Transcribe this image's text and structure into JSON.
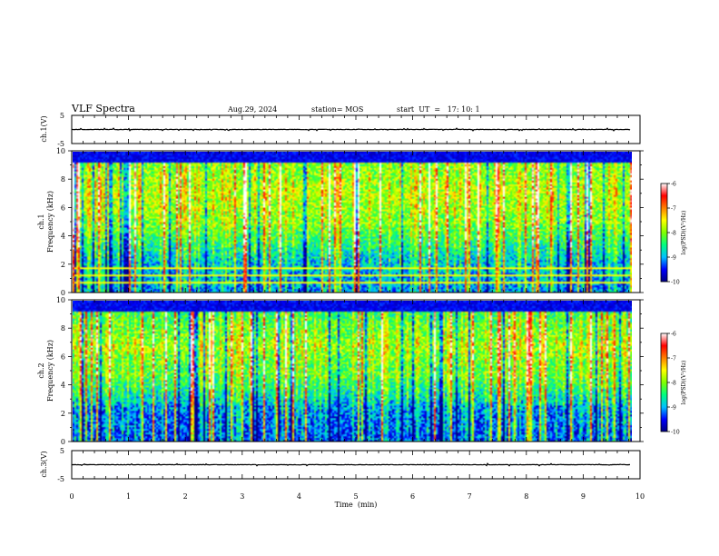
{
  "header": {
    "title": "VLF Spectra",
    "date": "Aug.29, 2024",
    "station": "station= MOS",
    "start": "start  UT  =   17: 10: 1"
  },
  "chart_data": [
    {
      "id": "ch1-waveform",
      "type": "line",
      "ylabel": "ch.1(V)",
      "ytick_labels": [
        "5",
        "-5"
      ],
      "ylim": [
        -5,
        5
      ],
      "xlim": [
        0,
        10
      ],
      "baseline": 0,
      "extent_x": 9.84
    },
    {
      "id": "ch1-spectrogram",
      "type": "heatmap",
      "ylabel": "ch.1\nFrequency (kHz)",
      "ylim": [
        0,
        10
      ],
      "yticks": [
        "0",
        "2",
        "4",
        "6",
        "8",
        "10"
      ],
      "xlim": [
        0,
        10
      ],
      "extent_x": 9.84,
      "colorbar": {
        "label": "log(PSD)(V²/Hz)",
        "range": [
          -10,
          -6
        ],
        "tick_labels": [
          "-6",
          "-7",
          "-8",
          "-9",
          "-10"
        ],
        "colors": [
          "#000080",
          "#0000ff",
          "#00c0ff",
          "#00ff80",
          "#80ff00",
          "#ffff00",
          "#ff8000",
          "#ff0000",
          "#ffffff"
        ]
      }
    },
    {
      "id": "ch2-spectrogram",
      "type": "heatmap",
      "ylabel": "ch.2\nFrequency (kHz)",
      "ylim": [
        0,
        10
      ],
      "yticks": [
        "0",
        "2",
        "4",
        "6",
        "8",
        "10"
      ],
      "xlim": [
        0,
        10
      ],
      "extent_x": 9.84,
      "colorbar": {
        "label": "log(PSD)(V²/Hz)",
        "range": [
          -10,
          -6
        ],
        "tick_labels": [
          "-6",
          "-7",
          "-8",
          "-9",
          "-10"
        ],
        "colors": [
          "#000080",
          "#0000ff",
          "#00c0ff",
          "#00ff80",
          "#80ff00",
          "#ffff00",
          "#ff8000",
          "#ff0000",
          "#ffffff"
        ]
      }
    },
    {
      "id": "ch3-waveform",
      "type": "line",
      "ylabel": "ch.3(V)",
      "ytick_labels": [
        "5",
        "-5"
      ],
      "ylim": [
        -5,
        5
      ],
      "xlim": [
        0,
        10
      ],
      "baseline": 0,
      "extent_x": 9.84,
      "xlabel": "Time  (min)",
      "xtick_labels": [
        "0",
        "1",
        "2",
        "3",
        "4",
        "5",
        "6",
        "7",
        "8",
        "9",
        "10"
      ]
    }
  ]
}
